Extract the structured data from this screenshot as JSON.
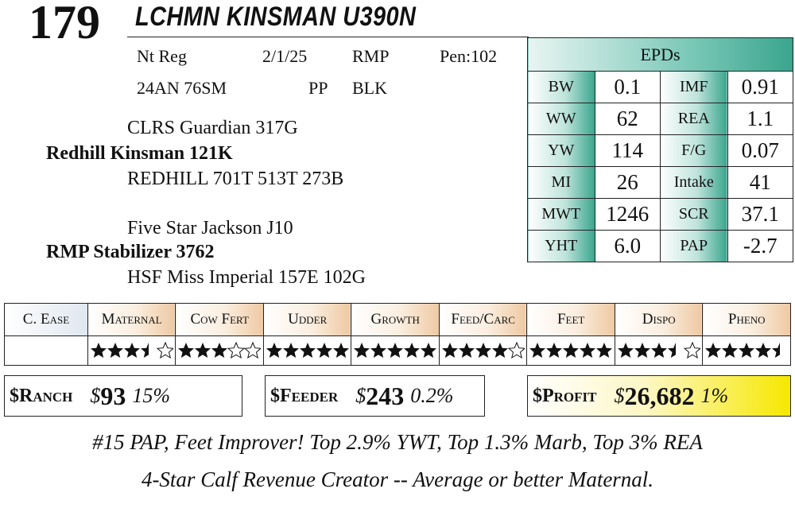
{
  "lot": "179",
  "name": "LCHMN KINSMAN U390N",
  "info": [
    [
      "Nt Reg",
      "2/1/25",
      "RMP",
      "Pen:102"
    ],
    [
      "24AN 76SM",
      "PP",
      "BLK"
    ]
  ],
  "pedigree": {
    "sire": {
      "sire": "CLRS Guardian 317G",
      "name": "Redhill Kinsman 121K",
      "dam": "REDHILL 701T 513T 273B"
    },
    "dam": {
      "sire": "Five Star Jackson J10",
      "name": "RMP Stabilizer 3762",
      "dam": "HSF Miss Imperial 157E 102G"
    }
  },
  "epds": {
    "title": "EPDs",
    "rows": [
      [
        "BW",
        "0.1",
        "IMF",
        "0.91"
      ],
      [
        "WW",
        "62",
        "REA",
        "1.1"
      ],
      [
        "YW",
        "114",
        "F/G",
        "0.07"
      ],
      [
        "MI",
        "26",
        "Intake",
        "41"
      ],
      [
        "MWT",
        "1246",
        "SCR",
        "37.1"
      ],
      [
        "YHT",
        "6.0",
        "PAP",
        "-2.7"
      ]
    ]
  },
  "ratings": {
    "headers": [
      "C. Ease",
      "Maternal",
      "Cow Fert",
      "Udder",
      "Growth",
      "Feed/Carc",
      "Feet",
      "Dispo",
      "Pheno"
    ],
    "stars": [
      null,
      3.5,
      3,
      5,
      5,
      4,
      5,
      3.5,
      4.5
    ]
  },
  "indexes": [
    {
      "label": "$Ranch",
      "currency": "$",
      "amount": "93",
      "pct": "15%"
    },
    {
      "label": "$Feeder",
      "currency": "$",
      "amount": "243",
      "pct": "0.2%"
    },
    {
      "label": "$Profit",
      "currency": "$",
      "amount": "26,682",
      "pct": "1%"
    }
  ],
  "notes": [
    "#15 PAP, Feet Improver! Top 2.9% YWT, Top 1.3% Marb, Top 3% REA",
    "4-Star Calf Revenue Creator -- Average or better Maternal."
  ]
}
